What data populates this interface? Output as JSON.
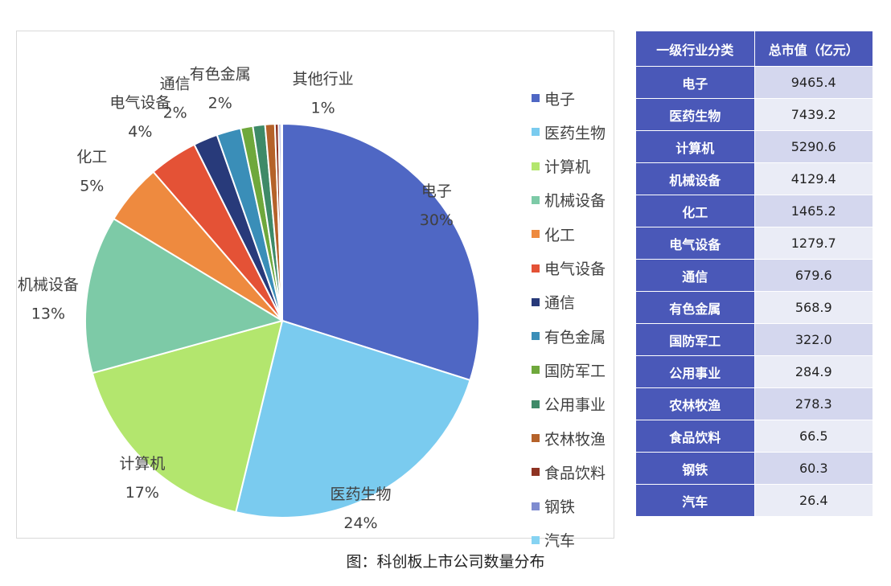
{
  "chart_data": {
    "type": "pie",
    "slices": [
      {
        "name": "电子",
        "percent": 30,
        "label": "30%",
        "color": "#4F67C4"
      },
      {
        "name": "医药生物",
        "percent": 24,
        "label": "24%",
        "color": "#7ACBEF"
      },
      {
        "name": "计算机",
        "percent": 17,
        "label": "17%",
        "color": "#B3E66E"
      },
      {
        "name": "机械设备",
        "percent": 13,
        "label": "13%",
        "color": "#7DCAA7"
      },
      {
        "name": "化工",
        "percent": 5,
        "label": "5%",
        "color": "#EE8A3F"
      },
      {
        "name": "电气设备",
        "percent": 4,
        "label": "4%",
        "color": "#E45236"
      },
      {
        "name": "通信",
        "percent": 2,
        "label": "2%",
        "color": "#283A7A"
      },
      {
        "name": "有色金属",
        "percent": 2,
        "label": "2%",
        "color": "#3A8EB8"
      },
      {
        "name": "国防军工",
        "percent": 1,
        "label": "",
        "color": "#6FA83C"
      },
      {
        "name": "公用事业",
        "percent": 1,
        "label": "",
        "color": "#3E8A68"
      },
      {
        "name": "农林牧渔",
        "percent": 0.8,
        "label": "",
        "color": "#B5622A"
      },
      {
        "name": "食品饮料",
        "percent": 0.3,
        "label": "",
        "color": "#8E3322"
      },
      {
        "name": "钢铁",
        "percent": 0.2,
        "label": "",
        "color": "#7F8CD0"
      },
      {
        "name": "汽车",
        "percent": 0.1,
        "label": "",
        "color": "#86D3F2"
      }
    ],
    "other_label": {
      "name": "其他行业",
      "label": "1%"
    },
    "legend": [
      "电子",
      "医药生物",
      "计算机",
      "机械设备",
      "化工",
      "电气设备",
      "通信",
      "有色金属",
      "国防军工",
      "公用事业",
      "农林牧渔",
      "食品饮料",
      "钢铁",
      "汽车"
    ],
    "legend_position": "right"
  },
  "table": {
    "headers": [
      "一级行业分类",
      "总市值（亿元）"
    ],
    "rows": [
      [
        "电子",
        "9465.4"
      ],
      [
        "医药生物",
        "7439.2"
      ],
      [
        "计算机",
        "5290.6"
      ],
      [
        "机械设备",
        "4129.4"
      ],
      [
        "化工",
        "1465.2"
      ],
      [
        "电气设备",
        "1279.7"
      ],
      [
        "通信",
        "679.6"
      ],
      [
        "有色金属",
        "568.9"
      ],
      [
        "国防军工",
        "322.0"
      ],
      [
        "公用事业",
        "284.9"
      ],
      [
        "农林牧渔",
        "278.3"
      ],
      [
        "食品饮料",
        "66.5"
      ],
      [
        "钢铁",
        "60.3"
      ],
      [
        "汽车",
        "26.4"
      ]
    ]
  },
  "caption": "图：科创板上市公司数量分布"
}
